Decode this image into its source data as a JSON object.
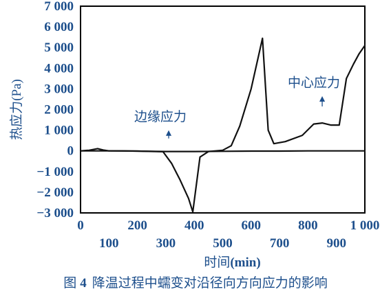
{
  "chart_data": {
    "type": "line",
    "title": "",
    "ylabel": "热应力(Pa)",
    "xlabel_text": "时间",
    "xlabel_unit": "(min)",
    "caption_prefix": "图",
    "caption_number": "4",
    "caption_text": "降温过程中蠕变对沿径向方向应力的影响",
    "xlim": [
      0,
      1000
    ],
    "ylim": [
      -3000,
      7000
    ],
    "y_ticks": [
      7000,
      6000,
      5000,
      4000,
      3000,
      2000,
      1000,
      0,
      -1000,
      -2000,
      -3000
    ],
    "y_tick_labels": [
      "7 000",
      "6 000",
      "5 000",
      "4 000",
      "3 000",
      "2 000",
      "1 000",
      "0",
      "−1 000",
      "−2 000",
      "−3 000"
    ],
    "x_ticks_upper": [
      0,
      200,
      400,
      600,
      800,
      1000
    ],
    "x_tick_labels_upper": [
      "0",
      "200",
      "400",
      "600",
      "800",
      "1 000"
    ],
    "x_ticks_lower": [
      100,
      300,
      500,
      700,
      900
    ],
    "x_tick_labels_lower": [
      "100",
      "300",
      "500",
      "700",
      "900"
    ],
    "annotations": [
      {
        "text": "边缘应力",
        "x": 310,
        "y": 1250,
        "arrow_to": {
          "x": 310,
          "y": 600
        }
      },
      {
        "text": "中心应力",
        "x": 850,
        "y": 2900,
        "arrow_to": {
          "x": 850,
          "y": 2150
        }
      }
    ],
    "series": [
      {
        "x": [
          0,
          30,
          60,
          80,
          100,
          150,
          200,
          250,
          300,
          400,
          500,
          600,
          700,
          800,
          900,
          1000
        ],
        "y": [
          0,
          30,
          110,
          40,
          0,
          0,
          -10,
          -20,
          -30,
          -30,
          -20,
          -10,
          -10,
          0,
          0,
          0
        ]
      },
      {
        "x": [
          0,
          100,
          200,
          290,
          320,
          350,
          380,
          395,
          420,
          450,
          500,
          530,
          560,
          600,
          640,
          660,
          680,
          720,
          780,
          820,
          850,
          880,
          910,
          935,
          960,
          980,
          1000
        ],
        "y": [
          0,
          0,
          -10,
          -40,
          -600,
          -1400,
          -2300,
          -2950,
          -300,
          -30,
          30,
          250,
          1200,
          3000,
          5450,
          1000,
          350,
          450,
          750,
          1300,
          1350,
          1250,
          1250,
          3500,
          4200,
          4700,
          5100
        ]
      }
    ]
  }
}
